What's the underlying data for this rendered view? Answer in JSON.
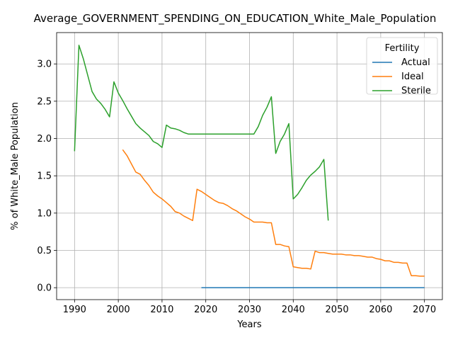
{
  "chart_data": {
    "type": "line",
    "title": "Average_GOVERNMENT_SPENDING_ON_EDUCATION_White_Male_Population",
    "xlabel": "Years",
    "ylabel": "% of White_Male Population",
    "xlim": [
      1985.9,
      2074.1
    ],
    "ylim": [
      -0.16,
      3.42
    ],
    "xticks": [
      1990,
      2000,
      2010,
      2020,
      2030,
      2040,
      2050,
      2060,
      2070
    ],
    "yticks": [
      0.0,
      0.5,
      1.0,
      1.5,
      2.0,
      2.5,
      3.0
    ],
    "grid": true,
    "legend": {
      "title": "Fertility",
      "placement": "upper right"
    },
    "series": [
      {
        "name": "Actual",
        "color": "#1f77b4",
        "x": [
          2019,
          2070
        ],
        "y": [
          0.0,
          0.0
        ]
      },
      {
        "name": "Ideal",
        "color": "#ff7f0e",
        "x": [
          2001,
          2002,
          2003,
          2004,
          2005,
          2006,
          2007,
          2008,
          2009,
          2010,
          2011,
          2012,
          2013,
          2014,
          2015,
          2016,
          2017,
          2018,
          2019,
          2020,
          2021,
          2022,
          2023,
          2024,
          2025,
          2026,
          2027,
          2028,
          2029,
          2030,
          2031,
          2032,
          2033,
          2034,
          2035,
          2036,
          2037,
          2038,
          2039,
          2040,
          2041,
          2042,
          2043,
          2044,
          2045,
          2046,
          2047,
          2048,
          2049,
          2050,
          2051,
          2052,
          2053,
          2054,
          2055,
          2056,
          2057,
          2058,
          2059,
          2060,
          2061,
          2062,
          2063,
          2064,
          2065,
          2066,
          2067,
          2068,
          2069,
          2070
        ],
        "y": [
          1.85,
          1.77,
          1.66,
          1.55,
          1.52,
          1.44,
          1.37,
          1.28,
          1.23,
          1.19,
          1.14,
          1.09,
          1.02,
          1.0,
          0.96,
          0.93,
          0.9,
          1.32,
          1.29,
          1.25,
          1.21,
          1.17,
          1.14,
          1.13,
          1.1,
          1.06,
          1.03,
          0.99,
          0.95,
          0.92,
          0.88,
          0.88,
          0.88,
          0.87,
          0.87,
          0.58,
          0.58,
          0.56,
          0.55,
          0.28,
          0.27,
          0.26,
          0.26,
          0.25,
          0.49,
          0.47,
          0.47,
          0.46,
          0.45,
          0.45,
          0.45,
          0.44,
          0.44,
          0.43,
          0.43,
          0.42,
          0.41,
          0.41,
          0.39,
          0.38,
          0.36,
          0.36,
          0.34,
          0.34,
          0.33,
          0.33,
          0.16,
          0.16,
          0.155,
          0.155
        ]
      },
      {
        "name": "Sterile",
        "color": "#2ca02c",
        "x": [
          1990,
          1991,
          1992,
          1993,
          1994,
          1995,
          1996,
          1997,
          1998,
          1999,
          2000,
          2001,
          2002,
          2003,
          2004,
          2005,
          2006,
          2007,
          2008,
          2009,
          2010,
          2011,
          2012,
          2013,
          2014,
          2015,
          2016,
          2017,
          2018,
          2019,
          2020,
          2021,
          2022,
          2023,
          2024,
          2025,
          2026,
          2027,
          2028,
          2029,
          2030,
          2031,
          2032,
          2033,
          2034,
          2035,
          2036,
          2037,
          2038,
          2039,
          2040,
          2041,
          2042,
          2043,
          2044,
          2045,
          2046,
          2047,
          2048
        ],
        "y": [
          1.83,
          3.25,
          3.07,
          2.85,
          2.63,
          2.53,
          2.47,
          2.39,
          2.29,
          2.76,
          2.61,
          2.51,
          2.4,
          2.3,
          2.2,
          2.14,
          2.09,
          2.04,
          1.96,
          1.93,
          1.88,
          2.18,
          2.14,
          2.13,
          2.11,
          2.08,
          2.06,
          2.06,
          2.06,
          2.06,
          2.06,
          2.06,
          2.06,
          2.06,
          2.06,
          2.06,
          2.06,
          2.06,
          2.06,
          2.06,
          2.06,
          2.06,
          2.16,
          2.31,
          2.42,
          2.56,
          1.8,
          1.96,
          2.06,
          2.2,
          1.19,
          1.25,
          1.34,
          1.44,
          1.51,
          1.56,
          1.62,
          1.72,
          0.9
        ]
      }
    ]
  }
}
